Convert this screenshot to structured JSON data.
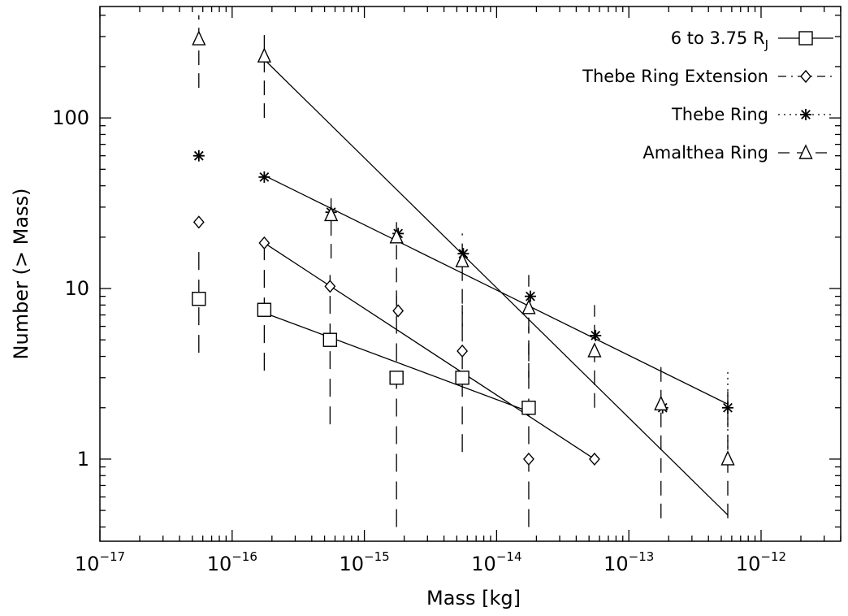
{
  "chart_data": {
    "type": "scatter",
    "title": "",
    "xlabel": "Mass [kg]",
    "ylabel": "Number (> Mass)",
    "xscale": "log",
    "yscale": "log",
    "xlim": [
      1e-17,
      4e-12
    ],
    "ylim": [
      0.33,
      450
    ],
    "x_ticks": [
      {
        "base": "10",
        "exp": "−17",
        "value": 1e-17
      },
      {
        "base": "10",
        "exp": "−16",
        "value": 1e-16
      },
      {
        "base": "10",
        "exp": "−15",
        "value": 1e-15
      },
      {
        "base": "10",
        "exp": "−14",
        "value": 1e-14
      },
      {
        "base": "10",
        "exp": "−13",
        "value": 1e-13
      },
      {
        "base": "10",
        "exp": "−12",
        "value": 1e-12
      }
    ],
    "y_ticks": [
      {
        "label": "1",
        "value": 1
      },
      {
        "label": "10",
        "value": 10
      },
      {
        "label": "100",
        "value": 100
      }
    ],
    "legend_position": "top-right",
    "grid": false,
    "series": [
      {
        "name": "6 to 3.75 R",
        "name_sub": "J",
        "marker": "square",
        "line_style": "solid",
        "errbar_dash": "22,12",
        "points": [
          {
            "x": 5.6e-17,
            "y": 8.7,
            "err": [
              4.2,
              18
            ]
          },
          {
            "x": 1.75e-16,
            "y": 7.5,
            "err": [
              3.3,
              17
            ]
          },
          {
            "x": 5.5e-16,
            "y": 5.0,
            "err": [
              1.6,
              12
            ]
          },
          {
            "x": 1.75e-15,
            "y": 3.0,
            "err": [
              0.4,
              9
            ]
          },
          {
            "x": 5.5e-15,
            "y": 3.0,
            "err": [
              1.1,
              8
            ]
          },
          {
            "x": 1.75e-14,
            "y": 2.0,
            "err": [
              0.4,
              6
            ]
          }
        ],
        "fit": [
          [
            1.75e-16,
            7.2
          ],
          [
            1.75e-14,
            1.9
          ]
        ]
      },
      {
        "name": "Thebe Ring Extension",
        "marker": "diamond",
        "line_style": "dash-dot",
        "errbar_dash": "10,6,2,6",
        "points": [
          {
            "x": 5.6e-17,
            "y": 24.5
          },
          {
            "x": 1.75e-16,
            "y": 18.5
          },
          {
            "x": 5.5e-16,
            "y": 10.3
          },
          {
            "x": 1.8e-15,
            "y": 7.4
          },
          {
            "x": 5.5e-15,
            "y": 4.3
          },
          {
            "x": 1.75e-14,
            "y": 1.0
          },
          {
            "x": 5.5e-14,
            "y": 1.0
          }
        ],
        "fit": [
          [
            1.75e-16,
            18.5
          ],
          [
            5.5e-14,
            1.0
          ]
        ]
      },
      {
        "name": "Thebe Ring",
        "marker": "asterisk",
        "line_style": "dotted",
        "errbar_dash": "2,5",
        "points": [
          {
            "x": 5.6e-17,
            "y": 60
          },
          {
            "x": 1.75e-16,
            "y": 45
          },
          {
            "x": 5.6e-16,
            "y": 28
          },
          {
            "x": 1.8e-15,
            "y": 21
          },
          {
            "x": 5.6e-15,
            "y": 16
          },
          {
            "x": 1.8e-14,
            "y": 9
          },
          {
            "x": 5.6e-14,
            "y": 5.3
          },
          {
            "x": 1.8e-13,
            "y": 2.0
          },
          {
            "x": 5.6e-13,
            "y": 2.0,
            "err": [
              1,
              3.4
            ]
          }
        ],
        "fit": [
          [
            1.75e-16,
            46
          ],
          [
            5.6e-13,
            2.1
          ]
        ]
      },
      {
        "name": "Amalthea Ring",
        "marker": "triangle",
        "line_style": "dashed",
        "errbar_dash": "18,10",
        "points": [
          {
            "x": 5.6e-17,
            "y": 290,
            "err": [
              150,
              400
            ]
          },
          {
            "x": 1.75e-16,
            "y": 230,
            "err": [
              100,
              320
            ]
          },
          {
            "x": 5.6e-16,
            "y": 27,
            "err": [
              15,
              35
            ]
          },
          {
            "x": 1.75e-15,
            "y": 20,
            "err": [
              8,
              27
            ]
          },
          {
            "x": 5.5e-15,
            "y": 14.5,
            "err": [
              6,
              21
            ]
          },
          {
            "x": 1.75e-14,
            "y": 7.7,
            "err": [
              3,
              12
            ]
          },
          {
            "x": 5.5e-14,
            "y": 4.3,
            "err": [
              2,
              8
            ]
          },
          {
            "x": 1.75e-13,
            "y": 2.1,
            "err": [
              0.45,
              3.6
            ]
          },
          {
            "x": 5.6e-13,
            "y": 1.0,
            "err": [
              0.45,
              2.5
            ]
          }
        ],
        "fit": [
          [
            1.75e-16,
            220
          ],
          [
            5.6e-13,
            0.47
          ]
        ]
      }
    ]
  }
}
